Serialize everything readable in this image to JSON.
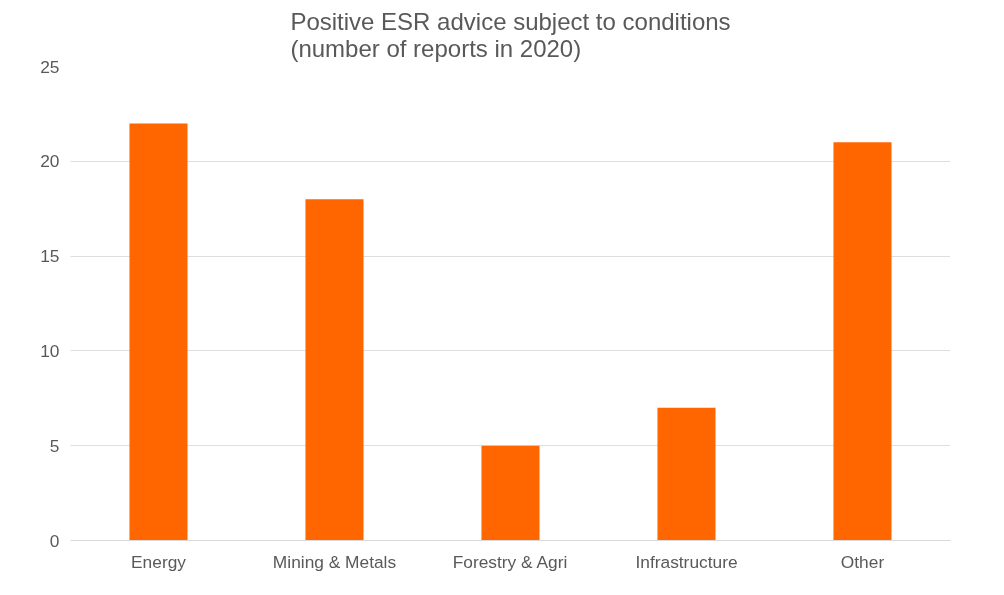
{
  "chart_data": {
    "type": "bar",
    "title": "Positive ESR advice subject to conditions\n(number of reports in 2020)",
    "categories": [
      "Energy",
      "Mining & Metals",
      "Forestry & Agri",
      "Infrastructure",
      "Other"
    ],
    "values": [
      22,
      18,
      5,
      7,
      21
    ],
    "color": "#ff6600",
    "ylim": [
      0,
      25
    ],
    "yticks": [
      0,
      5,
      10,
      15,
      20,
      25
    ],
    "grid": "y"
  }
}
